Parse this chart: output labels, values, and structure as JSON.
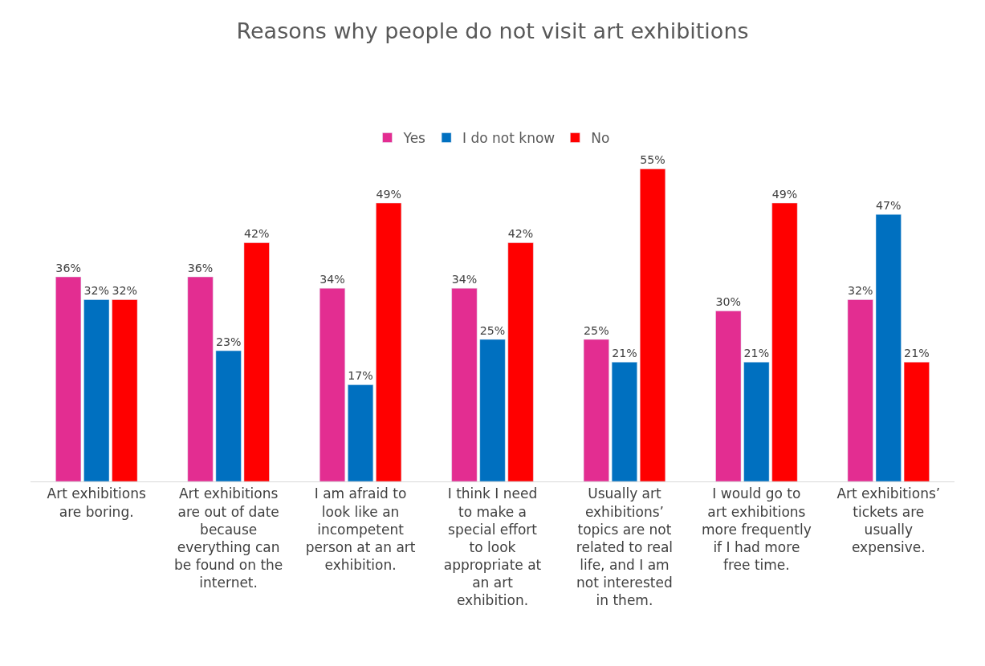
{
  "chart_data": {
    "type": "bar",
    "title": "Reasons why people do not visit art exhibitions",
    "legend": "top",
    "categories": [
      "Art exhibitions are boring.",
      "Art exhibitions are out of date because everything can be found on the internet.",
      "I am afraid to look like an incompetent person at an art exhibition.",
      "I think I need to make a special effort to look appropriate at an art exhibition.",
      "Usually art exhibitions’ topics are not related to real life, and I am not interested in them.",
      "I would go to art exhibitions more frequently if I had more free time.",
      "Art exhibitions’ tickets are usually expensive."
    ],
    "series": [
      {
        "name": "Yes",
        "color": "#e32d91",
        "values": [
          36,
          36,
          34,
          34,
          25,
          30,
          32
        ],
        "value_labels": [
          "36%",
          "36%",
          "34%",
          "34%",
          "25%",
          "30%",
          "32%"
        ]
      },
      {
        "name": "I do not know",
        "color": "#0070c0",
        "values": [
          32,
          23,
          17,
          25,
          21,
          21,
          47
        ],
        "value_labels": [
          "32%",
          "23%",
          "17%",
          "25%",
          "21%",
          "21%",
          "47%"
        ]
      },
      {
        "name": "No",
        "color": "#ff0000",
        "values": [
          32,
          42,
          49,
          42,
          55,
          49,
          21
        ],
        "value_labels": [
          "32%",
          "42%",
          "49%",
          "42%",
          "55%",
          "49%",
          "21%"
        ]
      }
    ]
  }
}
